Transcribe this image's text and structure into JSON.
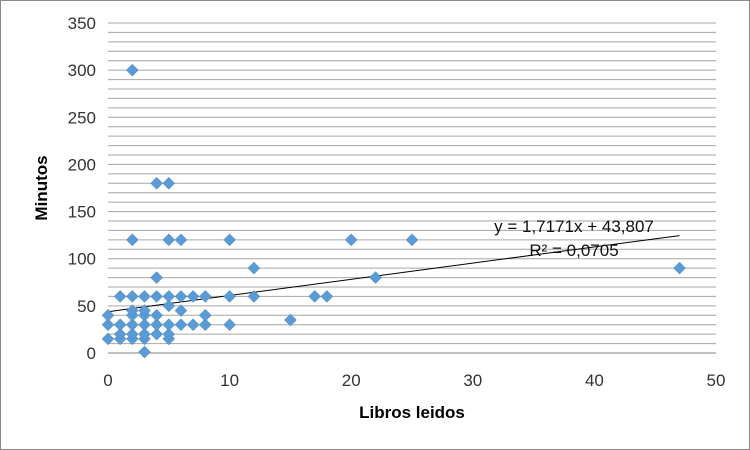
{
  "chart_data": {
    "type": "scatter",
    "title": "",
    "xlabel": "Libros leidos",
    "ylabel": "Minutos",
    "xlim": [
      0,
      50
    ],
    "ylim": [
      0,
      350
    ],
    "x_ticks": [
      0,
      10,
      20,
      30,
      40,
      50
    ],
    "y_ticks": [
      0,
      50,
      100,
      150,
      200,
      250,
      300,
      350
    ],
    "x_tick_labels": [
      "0",
      "10",
      "20",
      "30",
      "40",
      "50"
    ],
    "y_tick_labels": [
      "0",
      "50",
      "100",
      "150",
      "200",
      "250",
      "300",
      "350"
    ],
    "grid": "horizontal, every 10",
    "legend": "none",
    "marker": "diamond",
    "series_color": "#5b9bd5",
    "trendline_color": "#000000",
    "points": [
      [
        0,
        15
      ],
      [
        0,
        30
      ],
      [
        0,
        40
      ],
      [
        1,
        15
      ],
      [
        1,
        20
      ],
      [
        1,
        30
      ],
      [
        1,
        60
      ],
      [
        2,
        15
      ],
      [
        2,
        20
      ],
      [
        2,
        30
      ],
      [
        2,
        40
      ],
      [
        2,
        45
      ],
      [
        2,
        60
      ],
      [
        2,
        120
      ],
      [
        2,
        300
      ],
      [
        3,
        1
      ],
      [
        3,
        15
      ],
      [
        3,
        20
      ],
      [
        3,
        30
      ],
      [
        3,
        40
      ],
      [
        3,
        45
      ],
      [
        3,
        60
      ],
      [
        4,
        20
      ],
      [
        4,
        30
      ],
      [
        4,
        40
      ],
      [
        4,
        60
      ],
      [
        4,
        80
      ],
      [
        4,
        180
      ],
      [
        5,
        15
      ],
      [
        5,
        20
      ],
      [
        5,
        30
      ],
      [
        5,
        50
      ],
      [
        5,
        60
      ],
      [
        5,
        120
      ],
      [
        5,
        180
      ],
      [
        6,
        30
      ],
      [
        6,
        45
      ],
      [
        6,
        60
      ],
      [
        6,
        120
      ],
      [
        7,
        30
      ],
      [
        7,
        60
      ],
      [
        8,
        30
      ],
      [
        8,
        40
      ],
      [
        8,
        60
      ],
      [
        10,
        30
      ],
      [
        10,
        60
      ],
      [
        10,
        120
      ],
      [
        12,
        60
      ],
      [
        12,
        90
      ],
      [
        15,
        35
      ],
      [
        17,
        60
      ],
      [
        18,
        60
      ],
      [
        20,
        120
      ],
      [
        22,
        80
      ],
      [
        25,
        120
      ],
      [
        47,
        90
      ]
    ],
    "trendline": {
      "slope": 1.7171,
      "intercept": 43.807,
      "x_range": [
        0,
        47
      ],
      "equation_label": "y = 1,7171x + 43,807",
      "r2_label": "R² = 0,0705"
    }
  }
}
